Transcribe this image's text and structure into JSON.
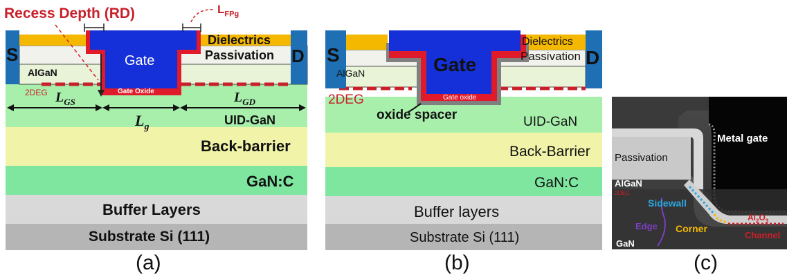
{
  "panel_a": {
    "recess_depth": "Recess Depth (RD)",
    "lfpg": "L",
    "lfpg_sub": "FPg",
    "dielectrics": "Dielectrics",
    "passivation": "Passivation",
    "gate": "Gate",
    "gate_oxide": "Gate Oxide",
    "source": "S",
    "drain": "D",
    "algan": "AlGaN",
    "twodeg": "2DEG",
    "lgs": "L",
    "lgs_sub": "GS",
    "lgd": "L",
    "lgd_sub": "GD",
    "lg": "L",
    "lg_sub": "g",
    "uid_gan": "UID-GaN",
    "back_barrier": "Back-barrier",
    "gan_c": "GaN:C",
    "buffer": "Buffer Layers",
    "substrate": "Substrate Si (111)",
    "caption": "(a)"
  },
  "panel_b": {
    "source": "S",
    "drain": "D",
    "gate": "Gate",
    "dielectrics": "Dielectrics",
    "passivation": "Passivation",
    "algan": "AlGaN",
    "twodeg": "2DEG",
    "gate_oxide": "Gate oxide",
    "oxide_spacer": "oxide spacer",
    "uid_gan": "UID-GaN",
    "back_barrier": "Back-Barrier",
    "gan_c": "GaN:C",
    "buffer": "Buffer layers",
    "substrate": "Substrate Si (111)",
    "caption": "(b)"
  },
  "panel_c": {
    "metal_gate": "Metal gate",
    "passivation": "Passivation",
    "algan": "AlGaN",
    "twodeg": "2DEG",
    "sidewall": "Sidewall",
    "edge": "Edge",
    "corner": "Corner",
    "al2o3": "Al",
    "al2o3_sub": "2",
    "al2o3_tail": "O",
    "al2o3_sub2": "3",
    "channel": "Channel",
    "gan": "GaN",
    "caption": "(c)"
  },
  "colors": {
    "uid_gan": "#a8efac",
    "back_barrier": "#f1f4a8",
    "gan_c": "#7fe6a0",
    "buffer": "#d9d9d9",
    "substrate": "#b5b5b5",
    "gate": "#1530d8",
    "gate_oxide": "#e01a2a",
    "contact": "#1f6fb5",
    "dielectric": "#f5b800",
    "algan": "#e8f3d8",
    "twodeg": "#c8202a"
  }
}
